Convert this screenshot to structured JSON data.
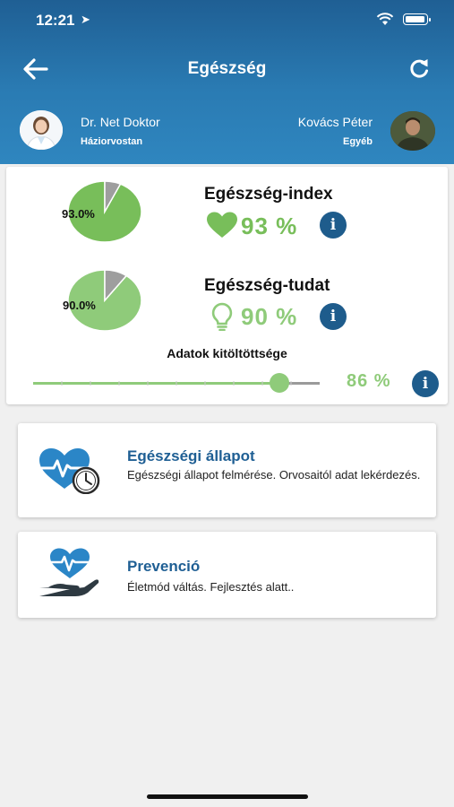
{
  "status_bar": {
    "time": "12:21"
  },
  "header": {
    "title": "Egészség",
    "doctor": {
      "name": "Dr. Net Doktor",
      "role": "Háziorvostan"
    },
    "patient": {
      "name": "Kovács Péter",
      "role": "Egyéb"
    }
  },
  "summary": {
    "health_index": {
      "title": "Egészség-index",
      "value": "93 %",
      "pie_label": "93.0%",
      "fraction": 0.93,
      "icon": "heart-icon"
    },
    "health_awareness": {
      "title": "Egészség-tudat",
      "value": "90 %",
      "pie_label": "90.0%",
      "fraction": 0.9,
      "icon": "lightbulb-icon"
    },
    "completeness": {
      "label": "Adatok kitöltöttsége",
      "value": "86 %",
      "fraction": 0.86
    }
  },
  "menu": [
    {
      "title": "Egészségi állapot",
      "description": "Egészségi állapot felmérése. Orvosaitól adat lekérdezés.",
      "icon": "heart-clock-icon"
    },
    {
      "title": "Prevenció",
      "description": "Életmód váltás. Fejlesztés alatt..",
      "icon": "heart-hand-icon"
    }
  ],
  "colors": {
    "header": "#2a7bb3",
    "green": "#78be5a",
    "light_green": "#8fcb7a",
    "info": "#1e5c8c",
    "title_blue": "#1f5f94"
  }
}
